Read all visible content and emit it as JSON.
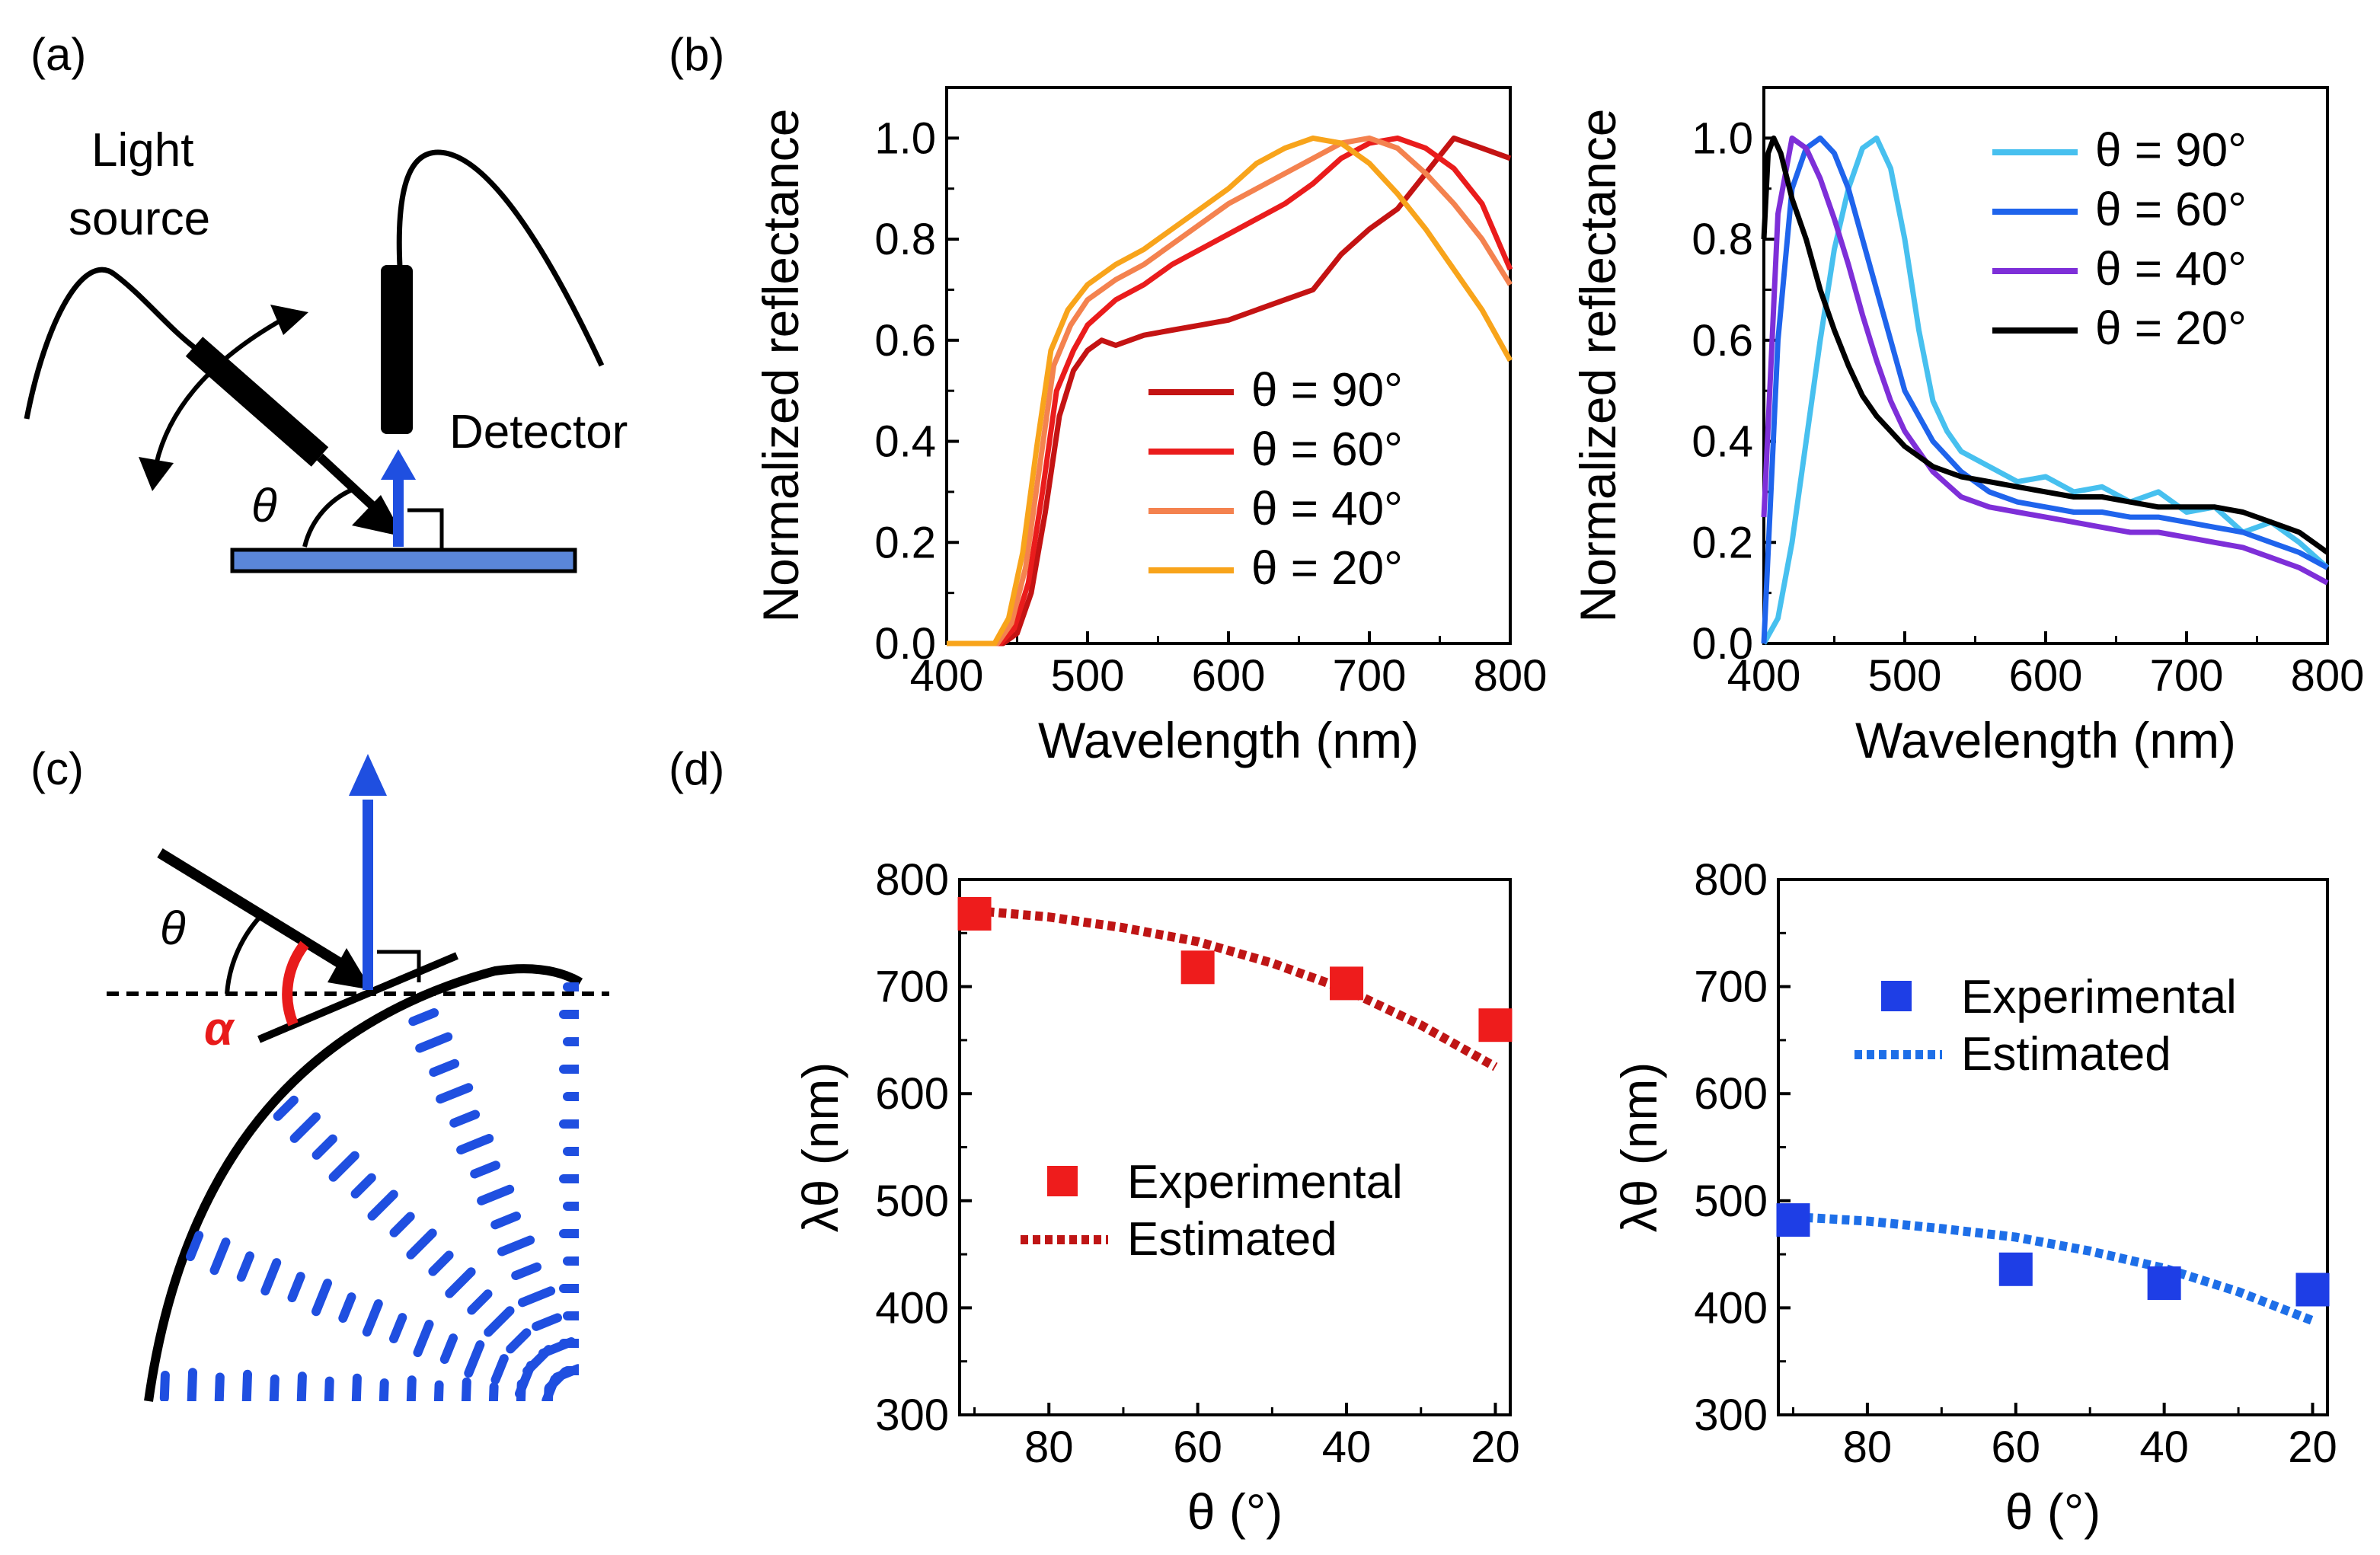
{
  "panel_labels": {
    "a": "(a)",
    "b": "(b)",
    "c": "(c)",
    "d": "(d)"
  },
  "panel_a": {
    "light_source_line1": "Light",
    "light_source_line2": "source",
    "detector": "Detector",
    "theta": "θ"
  },
  "panel_c": {
    "theta": "θ",
    "alpha": "α"
  },
  "colors": {
    "red_90": "#c41313",
    "red_60": "#ea1c1c",
    "red_40": "#f4824f",
    "red_20": "#f8a41b",
    "blue_90": "#47c0ef",
    "blue_60": "#1f64ec",
    "blue_40": "#7e2fd8",
    "blue_20": "#000000",
    "exp_red": "#ee1c1c",
    "est_red": "#bf1515",
    "exp_blue": "#1e3ee6",
    "est_blue": "#1e6fe8",
    "substrate": "#5a86d9"
  },
  "chart_data": [
    {
      "id": "b-left",
      "type": "line",
      "xlabel": "Wavelength (nm)",
      "ylabel": "Normalized reflectance",
      "xlim": [
        400,
        800
      ],
      "ylim": [
        0,
        1.1
      ],
      "xticks": [
        400,
        500,
        600,
        700,
        800
      ],
      "yticks": [
        0.0,
        0.2,
        0.4,
        0.6,
        0.8,
        1.0
      ],
      "xtick_labels": [
        "400",
        "500",
        "600",
        "700",
        "800"
      ],
      "ytick_labels": [
        "0.0",
        "0.2",
        "0.4",
        "0.6",
        "0.8",
        "1.0"
      ],
      "legend_position": "lower-right",
      "series": [
        {
          "name": "θ = 90°",
          "color": "#c41313",
          "x": [
            400,
            440,
            450,
            460,
            470,
            480,
            490,
            500,
            510,
            520,
            540,
            560,
            580,
            600,
            620,
            640,
            660,
            680,
            700,
            720,
            740,
            760,
            780,
            800
          ],
          "y": [
            0,
            0,
            0.02,
            0.1,
            0.26,
            0.45,
            0.54,
            0.58,
            0.6,
            0.59,
            0.61,
            0.62,
            0.63,
            0.64,
            0.66,
            0.68,
            0.7,
            0.77,
            0.82,
            0.86,
            0.93,
            1.0,
            0.98,
            0.96
          ]
        },
        {
          "name": "θ = 60°",
          "color": "#ea1c1c",
          "x": [
            400,
            438,
            448,
            458,
            468,
            478,
            490,
            500,
            520,
            540,
            560,
            580,
            600,
            620,
            640,
            660,
            680,
            700,
            720,
            740,
            760,
            780,
            800
          ],
          "y": [
            0,
            0,
            0.03,
            0.12,
            0.3,
            0.5,
            0.58,
            0.63,
            0.68,
            0.71,
            0.75,
            0.78,
            0.81,
            0.84,
            0.87,
            0.91,
            0.96,
            0.99,
            1.0,
            0.98,
            0.94,
            0.87,
            0.74
          ]
        },
        {
          "name": "θ = 40°",
          "color": "#f4824f",
          "x": [
            400,
            436,
            446,
            456,
            466,
            476,
            488,
            500,
            520,
            540,
            560,
            580,
            600,
            620,
            640,
            660,
            680,
            700,
            720,
            740,
            760,
            780,
            800
          ],
          "y": [
            0,
            0,
            0.04,
            0.15,
            0.35,
            0.55,
            0.63,
            0.68,
            0.72,
            0.75,
            0.79,
            0.83,
            0.87,
            0.9,
            0.93,
            0.96,
            0.99,
            1.0,
            0.98,
            0.93,
            0.87,
            0.8,
            0.71
          ]
        },
        {
          "name": "θ = 20°",
          "color": "#f8a41b",
          "x": [
            400,
            434,
            444,
            454,
            464,
            474,
            486,
            500,
            520,
            540,
            560,
            580,
            600,
            620,
            640,
            660,
            680,
            700,
            720,
            740,
            760,
            780,
            800
          ],
          "y": [
            0,
            0,
            0.05,
            0.18,
            0.39,
            0.58,
            0.66,
            0.71,
            0.75,
            0.78,
            0.82,
            0.86,
            0.9,
            0.95,
            0.98,
            1.0,
            0.99,
            0.95,
            0.89,
            0.82,
            0.74,
            0.66,
            0.56
          ]
        }
      ]
    },
    {
      "id": "b-right",
      "type": "line",
      "xlabel": "Wavelength (nm)",
      "ylabel": "Normalized reflectance",
      "xlim": [
        400,
        800
      ],
      "ylim": [
        0,
        1.1
      ],
      "xticks": [
        400,
        500,
        600,
        700,
        800
      ],
      "yticks": [
        0.0,
        0.2,
        0.4,
        0.6,
        0.8,
        1.0
      ],
      "xtick_labels": [
        "400",
        "500",
        "600",
        "700",
        "800"
      ],
      "ytick_labels": [
        "0.0",
        "0.2",
        "0.4",
        "0.6",
        "0.8",
        "1.0"
      ],
      "legend_position": "top-right",
      "series": [
        {
          "name": "θ = 90°",
          "color": "#47c0ef",
          "x": [
            400,
            410,
            420,
            430,
            440,
            450,
            460,
            470,
            480,
            490,
            500,
            510,
            520,
            530,
            540,
            560,
            580,
            600,
            620,
            640,
            660,
            680,
            700,
            720,
            740,
            760,
            780,
            800
          ],
          "y": [
            0,
            0.05,
            0.2,
            0.4,
            0.6,
            0.78,
            0.9,
            0.98,
            1.0,
            0.94,
            0.8,
            0.62,
            0.48,
            0.42,
            0.38,
            0.35,
            0.32,
            0.33,
            0.3,
            0.31,
            0.28,
            0.3,
            0.26,
            0.27,
            0.22,
            0.24,
            0.2,
            0.15
          ]
        },
        {
          "name": "θ = 60°",
          "color": "#1f64ec",
          "x": [
            400,
            405,
            410,
            420,
            430,
            440,
            450,
            460,
            470,
            480,
            490,
            500,
            520,
            540,
            560,
            580,
            600,
            620,
            640,
            660,
            680,
            700,
            720,
            740,
            760,
            780,
            800
          ],
          "y": [
            0,
            0.3,
            0.6,
            0.9,
            0.98,
            1.0,
            0.97,
            0.9,
            0.8,
            0.7,
            0.6,
            0.5,
            0.4,
            0.34,
            0.3,
            0.28,
            0.27,
            0.26,
            0.26,
            0.25,
            0.25,
            0.24,
            0.23,
            0.22,
            0.2,
            0.18,
            0.15
          ]
        },
        {
          "name": "θ = 40°",
          "color": "#7e2fd8",
          "x": [
            400,
            405,
            410,
            420,
            430,
            440,
            450,
            460,
            470,
            480,
            490,
            500,
            520,
            540,
            560,
            580,
            600,
            620,
            640,
            660,
            680,
            700,
            720,
            740,
            760,
            780,
            800
          ],
          "y": [
            0.25,
            0.55,
            0.85,
            1.0,
            0.98,
            0.92,
            0.84,
            0.75,
            0.65,
            0.56,
            0.48,
            0.42,
            0.34,
            0.29,
            0.27,
            0.26,
            0.25,
            0.24,
            0.23,
            0.22,
            0.22,
            0.21,
            0.2,
            0.19,
            0.17,
            0.15,
            0.12
          ]
        },
        {
          "name": "θ = 20°",
          "color": "#000000",
          "x": [
            400,
            403,
            407,
            412,
            420,
            430,
            440,
            450,
            460,
            470,
            480,
            490,
            500,
            520,
            540,
            560,
            580,
            600,
            620,
            640,
            660,
            680,
            700,
            720,
            740,
            760,
            780,
            800
          ],
          "y": [
            0.8,
            0.97,
            1.0,
            0.97,
            0.88,
            0.8,
            0.7,
            0.62,
            0.55,
            0.49,
            0.45,
            0.42,
            0.39,
            0.35,
            0.33,
            0.32,
            0.31,
            0.3,
            0.29,
            0.29,
            0.28,
            0.27,
            0.27,
            0.27,
            0.26,
            0.24,
            0.22,
            0.18
          ]
        }
      ]
    },
    {
      "id": "d-left",
      "type": "scatter",
      "xlabel": "θ (°)",
      "ylabel": "λθ (nm)",
      "xlim": [
        92,
        18
      ],
      "ylim": [
        300,
        800
      ],
      "xticks": [
        80,
        60,
        40,
        20
      ],
      "yticks": [
        300,
        400,
        500,
        600,
        700,
        800
      ],
      "xtick_labels": [
        "80",
        "60",
        "40",
        "20"
      ],
      "ytick_labels": [
        "300",
        "400",
        "500",
        "600",
        "700",
        "800"
      ],
      "legend_position": "lower-left",
      "series": [
        {
          "name": "Experimental",
          "style": "marker",
          "color": "#ee1c1c",
          "x": [
            90,
            60,
            40,
            20
          ],
          "y": [
            768,
            718,
            703,
            664
          ]
        },
        {
          "name": "Estimated",
          "style": "dotted",
          "color": "#bf1515",
          "x": [
            90,
            80,
            70,
            60,
            50,
            40,
            30,
            20
          ],
          "y": [
            771,
            765,
            755,
            742,
            722,
            697,
            664,
            625
          ]
        }
      ]
    },
    {
      "id": "d-right",
      "type": "scatter",
      "xlabel": "θ (°)",
      "ylabel": "λθ (nm)",
      "xlim": [
        92,
        18
      ],
      "ylim": [
        300,
        800
      ],
      "xticks": [
        80,
        60,
        40,
        20
      ],
      "yticks": [
        300,
        400,
        500,
        600,
        700,
        800
      ],
      "xtick_labels": [
        "80",
        "60",
        "40",
        "20"
      ],
      "ytick_labels": [
        "300",
        "400",
        "500",
        "600",
        "700",
        "800"
      ],
      "legend_position": "top-right",
      "series": [
        {
          "name": "Experimental",
          "style": "marker",
          "color": "#1e3ee6",
          "x": [
            90,
            60,
            40,
            20
          ],
          "y": [
            482,
            436,
            423,
            417
          ]
        },
        {
          "name": "Estimated",
          "style": "dotted",
          "color": "#1e6fe8",
          "x": [
            90,
            80,
            70,
            60,
            50,
            40,
            30,
            20
          ],
          "y": [
            485,
            481,
            474,
            466,
            453,
            437,
            415,
            388
          ]
        }
      ]
    }
  ]
}
